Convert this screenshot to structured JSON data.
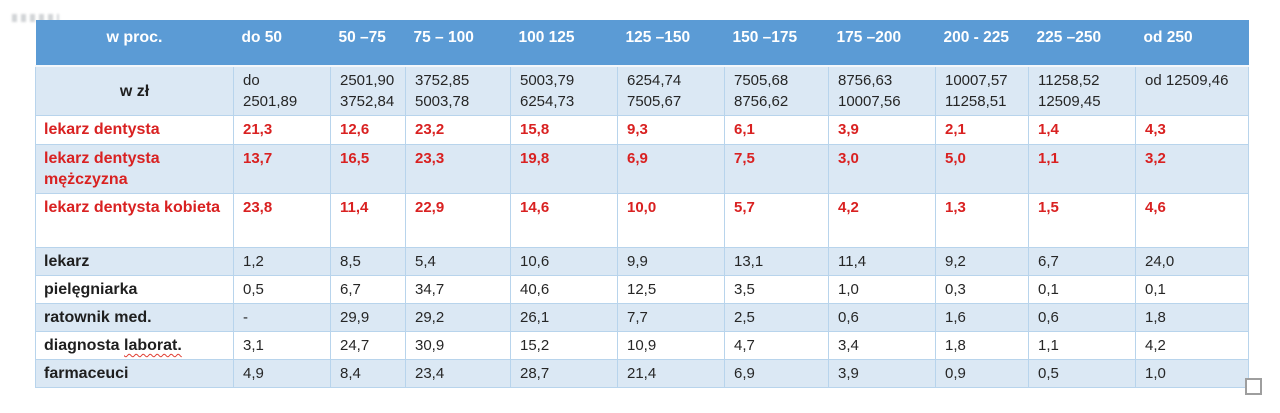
{
  "styles": {
    "header_bg": "#5b9bd5",
    "band_bg": "#dbe8f4",
    "border": "#b8d4ec",
    "red_text": "#d92121",
    "dark_text": "#262626"
  },
  "table": {
    "unit_header": {
      "label": "w proc.",
      "columns": [
        "do 50",
        "50 –75",
        "75 – 100",
        "100 125",
        "125 –150",
        "150 –175",
        "175 –200",
        "200 - 225",
        "225 –250",
        "od 250"
      ]
    },
    "zl_row": {
      "label": "w zł",
      "cells": [
        [
          "do",
          "2501,89"
        ],
        [
          "2501,90",
          "3752,84"
        ],
        [
          "3752,85",
          "5003,78"
        ],
        [
          "5003,79",
          "6254,73"
        ],
        [
          "6254,74",
          "7505,67"
        ],
        [
          "7505,68",
          "8756,62"
        ],
        [
          "8756,63",
          "10007,56"
        ],
        [
          "10007,57",
          "11258,51"
        ],
        [
          "11258,52",
          "12509,45"
        ],
        [
          "od 12509,46"
        ]
      ]
    },
    "rows": [
      {
        "label": "lekarz dentysta",
        "color": "red",
        "values": [
          "21,3",
          "12,6",
          "23,2",
          "15,8",
          "9,3",
          "6,1",
          "3,9",
          "2,1",
          "1,4",
          "4,3"
        ]
      },
      {
        "label": "lekarz dentysta mężczyzna",
        "color": "red",
        "values": [
          "13,7",
          "16,5",
          "23,3",
          "19,8",
          "6,9",
          "7,5",
          "3,0",
          "5,0",
          "1,1",
          "3,2"
        ]
      },
      {
        "label": "lekarz dentysta kobieta",
        "color": "red",
        "values": [
          "23,8",
          "11,4",
          "22,9",
          "14,6",
          "10,0",
          "5,7",
          "4,2",
          "1,3",
          "1,5",
          "4,6"
        ]
      },
      {
        "label": "lekarz",
        "color": "dark",
        "values": [
          "1,2",
          "8,5",
          "5,4",
          "10,6",
          "9,9",
          "13,1",
          "11,4",
          "9,2",
          "6,7",
          "24,0"
        ]
      },
      {
        "label": "pielęgniarka",
        "color": "dark",
        "values": [
          "0,5",
          "6,7",
          "34,7",
          "40,6",
          "12,5",
          "3,5",
          "1,0",
          "0,3",
          "0,1",
          "0,1"
        ]
      },
      {
        "label": "ratownik med.",
        "color": "dark",
        "values": [
          "-",
          "29,9",
          "29,2",
          "26,1",
          "7,7",
          "2,5",
          "0,6",
          "1,6",
          "0,6",
          "1,8"
        ]
      },
      {
        "label": "diagnosta laborat.",
        "color": "dark",
        "label_prefix": "diagnosta ",
        "label_flagged": "laborat.",
        "values": [
          "3,1",
          "24,7",
          "30,9",
          "15,2",
          "10,9",
          "4,7",
          "3,4",
          "1,8",
          "1,1",
          "4,2"
        ]
      },
      {
        "label": "farmaceuci",
        "color": "dark",
        "values": [
          "4,9",
          "8,4",
          "23,4",
          "28,7",
          "21,4",
          "6,9",
          "3,9",
          "0,9",
          "0,5",
          "1,0"
        ]
      }
    ]
  }
}
